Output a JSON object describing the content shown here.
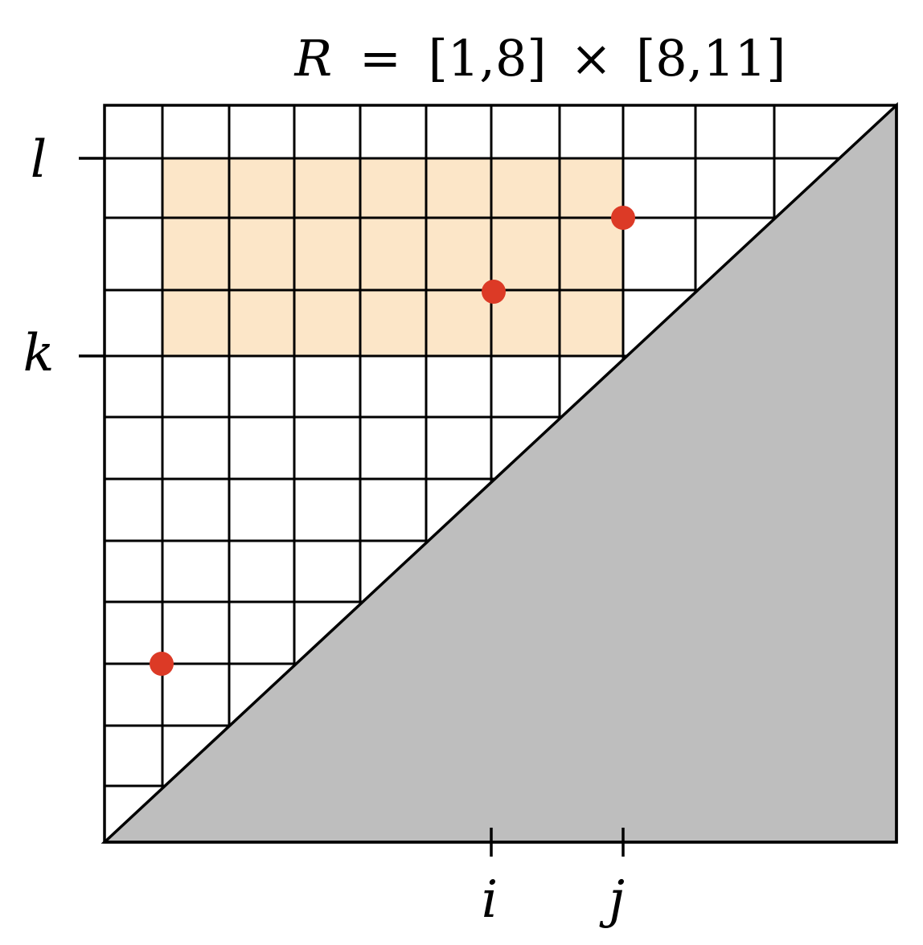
{
  "title": {
    "symbol": "R",
    "equals": "=",
    "interval_a": "[1,8]",
    "times": "×",
    "interval_b": "[8,11]"
  },
  "axis_labels": {
    "l": "l",
    "k": "k",
    "i": "i",
    "j": "j"
  },
  "colors": {
    "rectangle_fill": "#fce6c8",
    "triangle_fill": "#bebebe",
    "point": "#dc3a26",
    "grid_line": "#000000"
  },
  "points": [
    {
      "name": "point-top-right"
    },
    {
      "name": "point-middle"
    },
    {
      "name": "point-bottom-left"
    }
  ]
}
